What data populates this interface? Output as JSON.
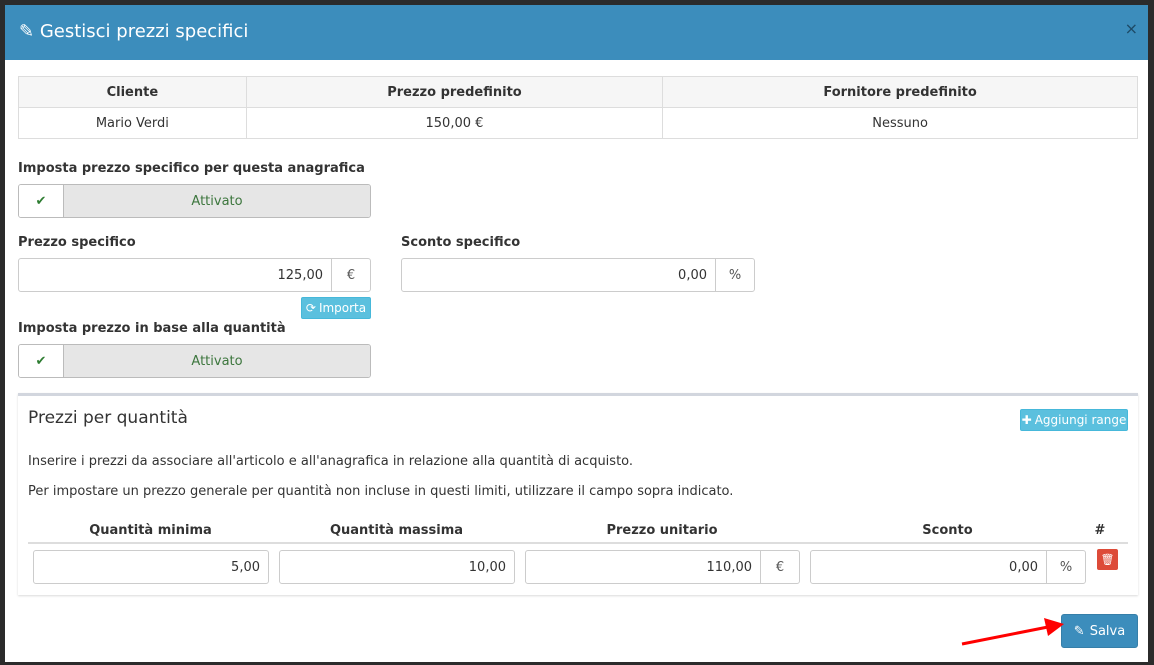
{
  "modal": {
    "title": "Gestisci prezzi specifici",
    "title_icon": "pencil-icon",
    "close": "×"
  },
  "info_table": {
    "headers": [
      "Cliente",
      "Prezzo predefinito",
      "Fornitore predefinito"
    ],
    "row": [
      "Mario Verdi",
      "150,00 €",
      "Nessuno"
    ]
  },
  "specific": {
    "label": "Imposta prezzo specifico per questa anagrafica",
    "toggle": "Attivato"
  },
  "price": {
    "label": "Prezzo specifico",
    "value": "125,00",
    "addon": "€",
    "import_label": "Importa"
  },
  "discount": {
    "label": "Sconto specifico",
    "value": "0,00",
    "addon": "%"
  },
  "qty": {
    "label": "Imposta prezzo in base alla quantità",
    "toggle": "Attivato"
  },
  "qty_box": {
    "title": "Prezzi per quantità",
    "add_label": "Aggiungi range",
    "text1": "Inserire i prezzi da associare all'articolo e all'anagrafica in relazione alla quantità di acquisto.",
    "text2": "Per impostare un prezzo generale per quantità non incluse in questi limiti, utilizzare il campo sopra indicato.",
    "headers": [
      "Quantità minima",
      "Quantità massima",
      "Prezzo unitario",
      "Sconto",
      "#"
    ],
    "row": {
      "min": "5,00",
      "max": "10,00",
      "price": "110,00",
      "price_addon": "€",
      "discount": "0,00",
      "discount_addon": "%"
    }
  },
  "save_label": "Salva",
  "colors": {
    "header": "#3c8dbc",
    "info": "#5bc0de",
    "danger": "#dd4b39",
    "annotation_arrow": "#ff0000"
  }
}
